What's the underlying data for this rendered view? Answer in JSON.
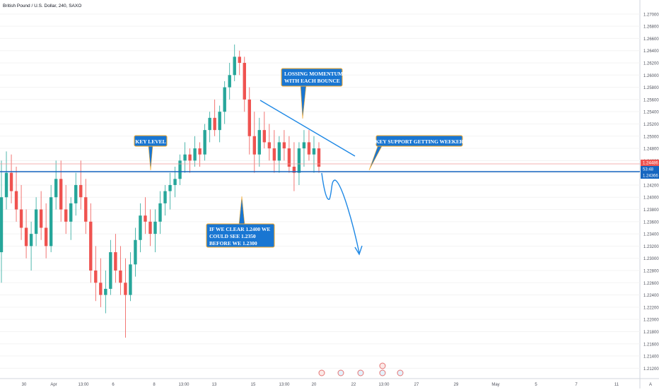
{
  "header": {
    "title": "British Pound / U.S. Dollar, 240, SAXO"
  },
  "colors": {
    "bull": "#26a69a",
    "bear": "#ef5350",
    "support_line": "#1565c0",
    "trend_line": "#1e88e5",
    "arrow": "#1e88e5",
    "callout_fill": "#1976d2",
    "callout_border": "#f9a825",
    "price_badge_red": "#ef5350",
    "price_badge_blue": "#1565c0"
  },
  "price_axis": {
    "labels": [
      "1.27000",
      "1.26800",
      "1.26600",
      "1.26400",
      "1.26200",
      "1.26000",
      "1.25800",
      "1.25600",
      "1.25400",
      "1.25200",
      "1.25000",
      "1.24800",
      "1.24600",
      "1.24400",
      "1.24200",
      "1.24000",
      "1.23800",
      "1.23600",
      "1.23400",
      "1.23200",
      "1.23000",
      "1.22800",
      "1.22600",
      "1.22400",
      "1.22200",
      "1.22000",
      "1.21800",
      "1.21600",
      "1.21400",
      "1.21200"
    ],
    "badges": [
      {
        "text": "1.24486",
        "color": "red"
      },
      {
        "text": "53:48",
        "color": "blue"
      },
      {
        "text": "1.24366",
        "color": "blue"
      }
    ]
  },
  "time_axis": {
    "labels": [
      "30",
      "Apr",
      "13:00",
      "6",
      "8",
      "13:00",
      "13",
      "15",
      "13:00",
      "20",
      "22",
      "13:00",
      "27",
      "29",
      "May",
      "5",
      "7",
      "11"
    ],
    "corner": "A"
  },
  "annotations": [
    {
      "id": "key-level",
      "text": [
        "KEY LEVEL"
      ]
    },
    {
      "id": "losing-momentum",
      "text": [
        "LOSSING MOMENTUM",
        "WITH EACH BOUNCE"
      ]
    },
    {
      "id": "key-support",
      "text": [
        "KEY SUPPORT GETTING WEEKER"
      ]
    },
    {
      "id": "clear-1-24",
      "text": [
        "IF WE CLEAR 1.2400 WE",
        "COULD SEE 1.2350",
        "BEFORE WE 1.2300"
      ]
    }
  ],
  "event_markers": [
    "•",
    "•",
    "•",
    "•",
    "•",
    "•"
  ],
  "chart_data": {
    "type": "candlestick",
    "symbol": "GBPUSD",
    "timeframe": "240",
    "ylim": [
      1.211,
      1.2716
    ],
    "support_level": 1.24366,
    "last_price": 1.24486,
    "candles": [
      [
        1.231,
        1.246,
        1.226,
        1.24
      ],
      [
        1.24,
        1.2475,
        1.238,
        1.244
      ],
      [
        1.244,
        1.247,
        1.239,
        1.241
      ],
      [
        1.241,
        1.245,
        1.236,
        1.238
      ],
      [
        1.238,
        1.242,
        1.233,
        1.235
      ],
      [
        1.235,
        1.238,
        1.23,
        1.232
      ],
      [
        1.232,
        1.236,
        1.228,
        1.234
      ],
      [
        1.234,
        1.24,
        1.232,
        1.238
      ],
      [
        1.238,
        1.241,
        1.233,
        1.235
      ],
      [
        1.235,
        1.239,
        1.23,
        1.232
      ],
      [
        1.232,
        1.242,
        1.231,
        1.24
      ],
      [
        1.24,
        1.246,
        1.238,
        1.243
      ],
      [
        1.243,
        1.246,
        1.236,
        1.238
      ],
      [
        1.238,
        1.242,
        1.234,
        1.236
      ],
      [
        1.236,
        1.24,
        1.233,
        1.239
      ],
      [
        1.239,
        1.244,
        1.237,
        1.242
      ],
      [
        1.242,
        1.246,
        1.238,
        1.24
      ],
      [
        1.24,
        1.243,
        1.234,
        1.236
      ],
      [
        1.236,
        1.239,
        1.226,
        1.228
      ],
      [
        1.228,
        1.232,
        1.223,
        1.226
      ],
      [
        1.226,
        1.23,
        1.222,
        1.224
      ],
      [
        1.224,
        1.228,
        1.221,
        1.225
      ],
      [
        1.225,
        1.233,
        1.224,
        1.231
      ],
      [
        1.231,
        1.234,
        1.226,
        1.228
      ],
      [
        1.228,
        1.232,
        1.224,
        1.226
      ],
      [
        1.226,
        1.23,
        1.217,
        1.224
      ],
      [
        1.224,
        1.231,
        1.223,
        1.229
      ],
      [
        1.229,
        1.235,
        1.227,
        1.233
      ],
      [
        1.233,
        1.239,
        1.231,
        1.237
      ],
      [
        1.237,
        1.24,
        1.234,
        1.236
      ],
      [
        1.236,
        1.238,
        1.232,
        1.234
      ],
      [
        1.234,
        1.238,
        1.231,
        1.236
      ],
      [
        1.236,
        1.241,
        1.234,
        1.239
      ],
      [
        1.239,
        1.242,
        1.237,
        1.241
      ],
      [
        1.241,
        1.244,
        1.238,
        1.242
      ],
      [
        1.242,
        1.245,
        1.24,
        1.243
      ],
      [
        1.243,
        1.247,
        1.242,
        1.246
      ],
      [
        1.246,
        1.249,
        1.244,
        1.247
      ],
      [
        1.247,
        1.248,
        1.244,
        1.246
      ],
      [
        1.246,
        1.25,
        1.245,
        1.248
      ],
      [
        1.248,
        1.249,
        1.245,
        1.247
      ],
      [
        1.247,
        1.252,
        1.246,
        1.251
      ],
      [
        1.251,
        1.254,
        1.249,
        1.253
      ],
      [
        1.253,
        1.256,
        1.25,
        1.251
      ],
      [
        1.251,
        1.255,
        1.249,
        1.254
      ],
      [
        1.254,
        1.259,
        1.252,
        1.258
      ],
      [
        1.258,
        1.262,
        1.256,
        1.26
      ],
      [
        1.26,
        1.265,
        1.259,
        1.263
      ],
      [
        1.263,
        1.264,
        1.26,
        1.262
      ],
      [
        1.262,
        1.263,
        1.254,
        1.256
      ],
      [
        1.256,
        1.258,
        1.247,
        1.25
      ],
      [
        1.25,
        1.254,
        1.244,
        1.247
      ],
      [
        1.247,
        1.253,
        1.245,
        1.251
      ],
      [
        1.251,
        1.254,
        1.248,
        1.249
      ],
      [
        1.249,
        1.252,
        1.246,
        1.248
      ],
      [
        1.248,
        1.251,
        1.244,
        1.246
      ],
      [
        1.246,
        1.25,
        1.244,
        1.249
      ],
      [
        1.249,
        1.251,
        1.246,
        1.248
      ],
      [
        1.248,
        1.25,
        1.244,
        1.245
      ],
      [
        1.245,
        1.249,
        1.241,
        1.244
      ],
      [
        1.244,
        1.249,
        1.242,
        1.248
      ],
      [
        1.248,
        1.251,
        1.245,
        1.249
      ],
      [
        1.249,
        1.251,
        1.246,
        1.247
      ],
      [
        1.247,
        1.25,
        1.244,
        1.248
      ],
      [
        1.248,
        1.249,
        1.244,
        1.245
      ]
    ]
  }
}
